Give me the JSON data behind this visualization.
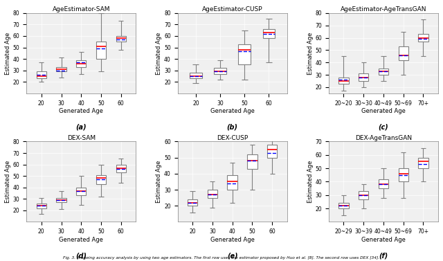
{
  "fig_title": "Fig. 3. A ageing accuracy analysis by using two age estimators. The first row uses the estimator proposed by Huo et al. [8]. The second row uses DEX [34].",
  "subplots": [
    {
      "title": "AgeEstimator-SAM",
      "xlabel": "Generated Age",
      "ylabel": "Estimated Age",
      "label": "(a)",
      "categories": [
        "20",
        "30",
        "40",
        "50",
        "60"
      ],
      "ylim": [
        10,
        80
      ],
      "yticks": [
        20,
        30,
        40,
        50,
        60,
        70,
        80
      ],
      "boxes": [
        {
          "q1": 23,
          "median": 25,
          "q3": 29,
          "whislo": 20,
          "whishi": 37,
          "mean": 26
        },
        {
          "q1": 29,
          "median": 31,
          "q3": 33,
          "whislo": 24,
          "whishi": 41,
          "mean": 30
        },
        {
          "q1": 33,
          "median": 36,
          "q3": 39,
          "whislo": 27,
          "whishi": 46,
          "mean": 37
        },
        {
          "q1": 40,
          "median": 51,
          "q3": 55,
          "whislo": 29,
          "whishi": 80,
          "mean": 49
        },
        {
          "q1": 55,
          "median": 58,
          "q3": 60,
          "whislo": 48,
          "whishi": 73,
          "mean": 57
        }
      ]
    },
    {
      "title": "AgeEstimator-CUSP",
      "xlabel": "Generated Age",
      "ylabel": "Estimated Age",
      "label": "(b)",
      "categories": [
        "20",
        "30",
        "50",
        "60"
      ],
      "ylim": [
        10,
        80
      ],
      "yticks": [
        20,
        30,
        40,
        50,
        60,
        70,
        80
      ],
      "boxes": [
        {
          "q1": 23,
          "median": 25,
          "q3": 28,
          "whislo": 19,
          "whishi": 35,
          "mean": 25
        },
        {
          "q1": 27,
          "median": 29,
          "q3": 32,
          "whislo": 22,
          "whishi": 39,
          "mean": 29
        },
        {
          "q1": 35,
          "median": 48,
          "q3": 53,
          "whislo": 22,
          "whishi": 65,
          "mean": 47
        },
        {
          "q1": 58,
          "median": 63,
          "q3": 66,
          "whislo": 37,
          "whishi": 75,
          "mean": 62
        }
      ]
    },
    {
      "title": "AgeEstimator-AgeTransGAN",
      "xlabel": "Generated Age",
      "ylabel": "Estimated Age",
      "label": "(c)",
      "categories": [
        "20~20",
        "30~30",
        "40~49",
        "50~69",
        "70+"
      ],
      "ylim": [
        15,
        80
      ],
      "yticks": [
        20,
        30,
        40,
        50,
        60,
        70,
        80
      ],
      "boxes": [
        {
          "q1": 23,
          "median": 25,
          "q3": 28,
          "whislo": 17,
          "whishi": 45,
          "mean": 26
        },
        {
          "q1": 25,
          "median": 28,
          "q3": 31,
          "whislo": 20,
          "whishi": 40,
          "mean": 28
        },
        {
          "q1": 30,
          "median": 33,
          "q3": 35,
          "whislo": 25,
          "whishi": 45,
          "mean": 33
        },
        {
          "q1": 42,
          "median": 46,
          "q3": 53,
          "whislo": 30,
          "whishi": 65,
          "mean": 46
        },
        {
          "q1": 57,
          "median": 60,
          "q3": 63,
          "whislo": 45,
          "whishi": 75,
          "mean": 59
        }
      ]
    },
    {
      "title": "DEX-SAM",
      "xlabel": "Generated Age",
      "ylabel": "Estimated Age",
      "label": "(d)",
      "categories": [
        "20",
        "30",
        "40",
        "50",
        "60"
      ],
      "ylim": [
        10,
        80
      ],
      "yticks": [
        20,
        30,
        40,
        50,
        60,
        70,
        80
      ],
      "boxes": [
        {
          "q1": 22,
          "median": 24,
          "q3": 26,
          "whislo": 17,
          "whishi": 31,
          "mean": 24
        },
        {
          "q1": 27,
          "median": 29,
          "q3": 31,
          "whislo": 21,
          "whishi": 37,
          "mean": 29
        },
        {
          "q1": 33,
          "median": 37,
          "q3": 40,
          "whislo": 25,
          "whishi": 50,
          "mean": 37
        },
        {
          "q1": 43,
          "median": 48,
          "q3": 51,
          "whislo": 32,
          "whishi": 60,
          "mean": 47
        },
        {
          "q1": 53,
          "median": 57,
          "q3": 60,
          "whislo": 44,
          "whishi": 65,
          "mean": 56
        }
      ]
    },
    {
      "title": "DEX-CUSP",
      "xlabel": "Generated Age",
      "ylabel": "Estimated Age",
      "label": "(e)",
      "categories": [
        "20",
        "30",
        "40",
        "50",
        "60"
      ],
      "ylim": [
        10,
        60
      ],
      "yticks": [
        20,
        30,
        40,
        50,
        60
      ],
      "boxes": [
        {
          "q1": 20,
          "median": 22,
          "q3": 24,
          "whislo": 16,
          "whishi": 29,
          "mean": 22
        },
        {
          "q1": 25,
          "median": 27,
          "q3": 30,
          "whislo": 19,
          "whishi": 35,
          "mean": 27
        },
        {
          "q1": 30,
          "median": 35,
          "q3": 39,
          "whislo": 22,
          "whishi": 47,
          "mean": 34
        },
        {
          "q1": 43,
          "median": 48,
          "q3": 52,
          "whislo": 30,
          "whishi": 58,
          "mean": 48
        },
        {
          "q1": 50,
          "median": 55,
          "q3": 58,
          "whislo": 40,
          "whishi": 62,
          "mean": 53
        }
      ]
    },
    {
      "title": "DEX-AgeTransGAN",
      "xlabel": "Generated Age",
      "ylabel": "Estimated Age",
      "label": "(f)",
      "categories": [
        "20~29",
        "30~39",
        "40~49",
        "50~69",
        "70+"
      ],
      "ylim": [
        10,
        70
      ],
      "yticks": [
        20,
        30,
        40,
        50,
        60,
        70
      ],
      "boxes": [
        {
          "q1": 20,
          "median": 22,
          "q3": 24,
          "whislo": 15,
          "whishi": 30,
          "mean": 22
        },
        {
          "q1": 27,
          "median": 30,
          "q3": 33,
          "whislo": 20,
          "whishi": 38,
          "mean": 30
        },
        {
          "q1": 35,
          "median": 38,
          "q3": 42,
          "whislo": 28,
          "whishi": 50,
          "mean": 38
        },
        {
          "q1": 40,
          "median": 46,
          "q3": 50,
          "whislo": 28,
          "whishi": 62,
          "mean": 45
        },
        {
          "q1": 50,
          "median": 55,
          "q3": 58,
          "whislo": 40,
          "whishi": 65,
          "mean": 53
        }
      ]
    }
  ],
  "median_color": "red",
  "mean_color": "blue",
  "whisker_color": "gray",
  "background_color": "#f0f0f0"
}
